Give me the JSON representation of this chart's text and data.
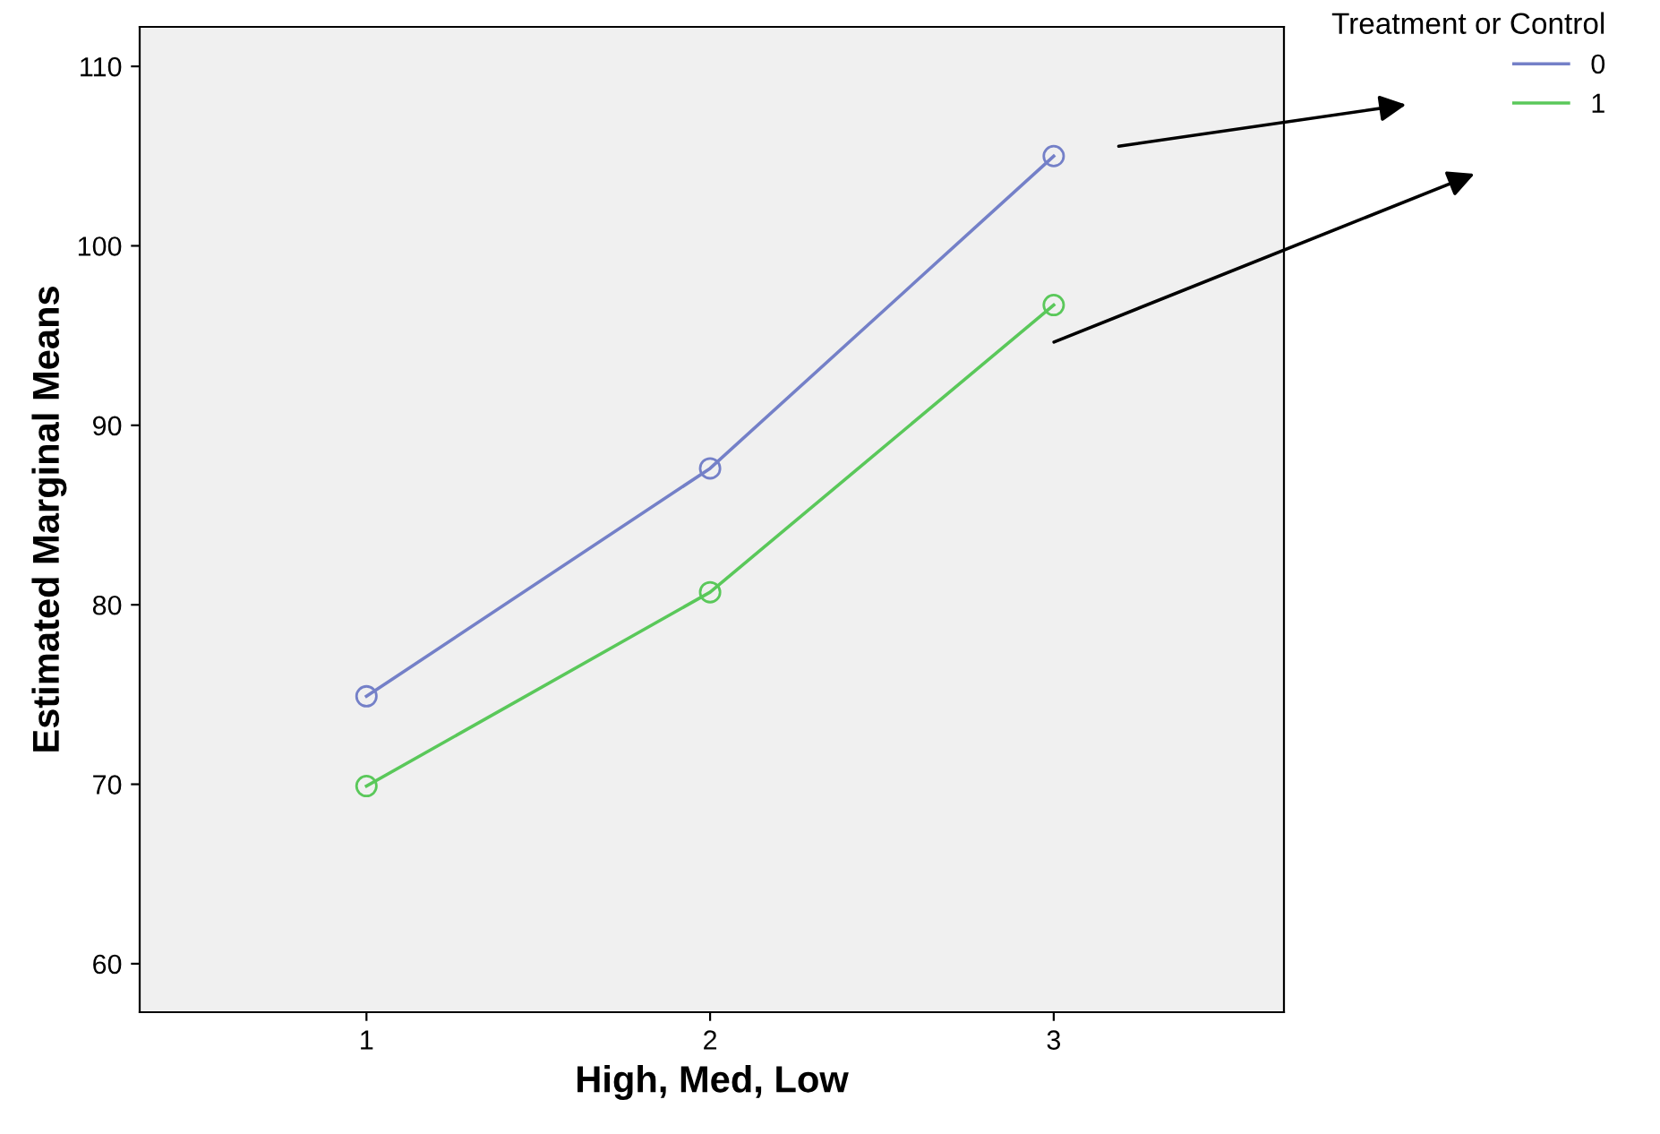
{
  "chart_data": {
    "type": "line",
    "xlabel": "High, Med, Low",
    "ylabel": "Estimated Marginal Means",
    "legend_title": "Treatment or Control",
    "x": [
      1,
      2,
      3
    ],
    "series": [
      {
        "name": "0",
        "color": "#7480c8",
        "values": [
          74.9,
          87.6,
          105.0
        ]
      },
      {
        "name": "1",
        "color": "#5ac85a",
        "values": [
          69.9,
          80.7,
          96.7
        ]
      }
    ],
    "xlim": [
      0.34,
      3.67
    ],
    "xticks": [
      1,
      2,
      3
    ],
    "ylim": [
      57.3,
      112.2
    ],
    "yticks": [
      60,
      70,
      80,
      90,
      100,
      110
    ],
    "grid": false,
    "legend": "top right",
    "marker": "circle",
    "line_style": "solid"
  }
}
